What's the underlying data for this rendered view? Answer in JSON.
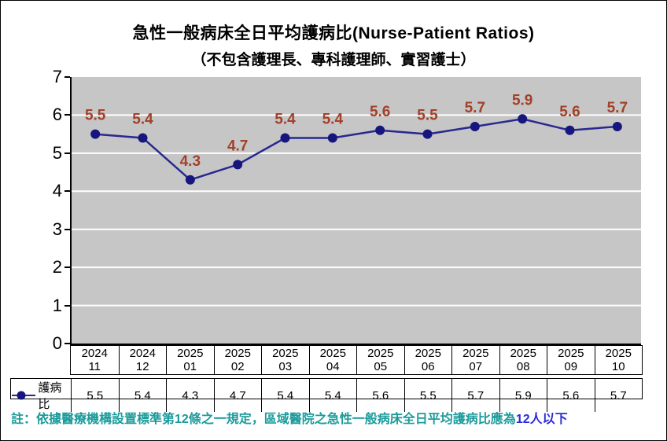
{
  "title": "急性一般病床全日平均護病比(Nurse-Patient Ratios)",
  "subtitle": "（不包含護理長、專科護理師、實習護士）",
  "chart_data": {
    "type": "line",
    "categories": [
      {
        "year": "2024",
        "month": "11"
      },
      {
        "year": "2024",
        "month": "12"
      },
      {
        "year": "2025",
        "month": "01"
      },
      {
        "year": "2025",
        "month": "02"
      },
      {
        "year": "2025",
        "month": "03"
      },
      {
        "year": "2025",
        "month": "04"
      },
      {
        "year": "2025",
        "month": "05"
      },
      {
        "year": "2025",
        "month": "06"
      },
      {
        "year": "2025",
        "month": "07"
      },
      {
        "year": "2025",
        "month": "08"
      },
      {
        "year": "2025",
        "month": "09"
      },
      {
        "year": "2025",
        "month": "10"
      }
    ],
    "series": [
      {
        "name": "護病比",
        "values": [
          5.5,
          5.4,
          4.3,
          4.7,
          5.4,
          5.4,
          5.6,
          5.5,
          5.7,
          5.9,
          5.6,
          5.7
        ]
      }
    ],
    "ylim": [
      0,
      7
    ],
    "yticks": [
      0,
      1,
      2,
      3,
      4,
      5,
      6,
      7
    ],
    "grid": "horizontal",
    "legend_position": "bottom-left-table",
    "data_labels": true
  },
  "colors": {
    "line": "#28288F",
    "marker": "#16167E",
    "data_label": "#A3402A",
    "plot_background": "#C6C6C6",
    "gridline": "#FFFFFF",
    "axis": "#000000",
    "note_text": "#1B9B9B",
    "note_highlight": "#2B2BD9"
  },
  "note": {
    "prefix": "註：依據醫療機構設置標準第12條之一規定，區域醫院之急性一般病床全日平均護病比應為",
    "highlight": "12人以下"
  }
}
